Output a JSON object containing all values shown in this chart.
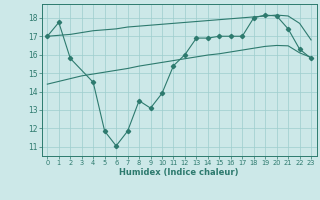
{
  "xlabel": "Humidex (Indice chaleur)",
  "x_values": [
    0,
    1,
    2,
    3,
    4,
    5,
    6,
    7,
    8,
    9,
    10,
    11,
    12,
    13,
    14,
    15,
    16,
    17,
    18,
    19,
    20,
    21,
    22,
    23
  ],
  "line_main_y": [
    17.0,
    17.75,
    15.8,
    null,
    14.5,
    11.85,
    11.05,
    11.85,
    13.5,
    13.1,
    13.9,
    15.4,
    16.0,
    16.9,
    16.9,
    17.0,
    17.0,
    17.0,
    18.0,
    18.15,
    18.1,
    17.4,
    16.3,
    15.8
  ],
  "line_upper_y": [
    17.0,
    17.05,
    17.1,
    17.2,
    17.3,
    17.35,
    17.4,
    17.5,
    17.55,
    17.6,
    17.65,
    17.7,
    17.75,
    17.8,
    17.85,
    17.9,
    17.95,
    18.0,
    18.05,
    18.1,
    18.15,
    18.1,
    17.7,
    16.8
  ],
  "line_lower_y": [
    14.4,
    14.55,
    14.7,
    14.85,
    14.95,
    15.05,
    15.15,
    15.25,
    15.38,
    15.48,
    15.58,
    15.68,
    15.78,
    15.88,
    15.98,
    16.05,
    16.15,
    16.25,
    16.35,
    16.45,
    16.5,
    16.48,
    16.1,
    15.85
  ],
  "ylim": [
    10.5,
    18.75
  ],
  "yticks": [
    11,
    12,
    13,
    14,
    15,
    16,
    17,
    18
  ],
  "xticks": [
    0,
    1,
    2,
    3,
    4,
    5,
    6,
    7,
    8,
    9,
    10,
    11,
    12,
    13,
    14,
    15,
    16,
    17,
    18,
    19,
    20,
    21,
    22,
    23
  ],
  "line_color": "#2d7a6e",
  "bg_color": "#cce8e8",
  "grid_color": "#9dcece"
}
